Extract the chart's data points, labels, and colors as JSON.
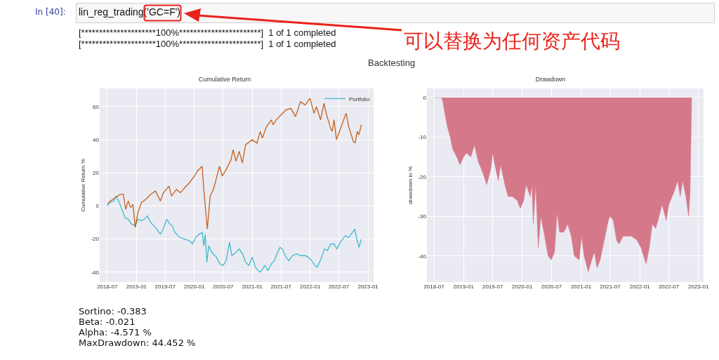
{
  "chart_data": [
    {
      "type": "other",
      "annotations": [
        "In [40]:",
        "lin_reg_trading('GC=F')",
        "[*********************100%***********************]  1 of 1 completed",
        "[*********************100%***********************]  1 of 1 completed",
        "可以替换为任何资产代码",
        "Backtesting"
      ]
    },
    {
      "type": "line",
      "title": "Cumulative Return",
      "ylabel": "Cumulative Return %",
      "xlim": [
        "2018-05-14",
        "2023-02-05"
      ],
      "ylim": [
        -46,
        71
      ],
      "xticks": [
        "2018-07",
        "2019-01",
        "2019-07",
        "2020-01",
        "2020-07",
        "2021-01",
        "2021-07",
        "2022-01",
        "2022-07",
        "2023-01"
      ],
      "yticks": [
        -40,
        -20,
        0,
        20,
        40,
        60
      ],
      "grid": true,
      "legend": "top right",
      "line_style": "solid",
      "marker": "none",
      "series": [
        {
          "name": "Portfolio",
          "color": "#40b9cc",
          "x": [
            "2018-07-01",
            "2018-07-15",
            "2018-08-10",
            "2018-08-25",
            "2018-09-15",
            "2018-10-05",
            "2018-10-20",
            "2018-11-10",
            "2018-12-01",
            "2018-12-25",
            "2019-01-10",
            "2019-02-01",
            "2019-02-20",
            "2019-03-10",
            "2019-04-01",
            "2019-05-01",
            "2019-06-01",
            "2019-06-20",
            "2019-07-10",
            "2019-08-01",
            "2019-08-15",
            "2019-09-01",
            "2019-10-01",
            "2019-11-01",
            "2019-12-01",
            "2019-12-20",
            "2020-01-10",
            "2020-02-01",
            "2020-02-20",
            "2020-03-01",
            "2020-03-10",
            "2020-03-20",
            "2020-04-01",
            "2020-04-20",
            "2020-05-20",
            "2020-06-10",
            "2020-07-01",
            "2020-07-20",
            "2020-08-10",
            "2020-08-25",
            "2020-09-20",
            "2020-10-10",
            "2020-11-01",
            "2020-11-20",
            "2020-12-10",
            "2021-01-01",
            "2021-01-20",
            "2021-02-15",
            "2021-03-01",
            "2021-03-20",
            "2021-04-10",
            "2021-05-01",
            "2021-05-20",
            "2021-06-10",
            "2021-06-25",
            "2021-07-10",
            "2021-08-01",
            "2021-08-20",
            "2021-09-10",
            "2021-10-10",
            "2021-11-01",
            "2021-12-01",
            "2021-12-20",
            "2022-01-10",
            "2022-02-01",
            "2022-02-15",
            "2022-03-10",
            "2022-04-01",
            "2022-04-20",
            "2022-05-10",
            "2022-06-01",
            "2022-06-20",
            "2022-07-10",
            "2022-08-10",
            "2022-09-01",
            "2022-09-25",
            "2022-10-10",
            "2022-10-25",
            "2022-11-05",
            "2022-11-20"
          ],
          "values": [
            0,
            2,
            3,
            6,
            2,
            -3,
            -7,
            -8,
            -11,
            -12,
            -8,
            -9,
            -8,
            -6,
            -10,
            -13,
            -17,
            -14,
            -8,
            -11,
            -12,
            -16,
            -19,
            -20,
            -21,
            -23,
            -19,
            -17,
            -16,
            -24,
            -17,
            -34,
            -24,
            -28,
            -31,
            -35,
            -36,
            -33,
            -22,
            -30,
            -28,
            -26,
            -29,
            -34,
            -36,
            -31,
            -37,
            -40,
            -39,
            -36,
            -39,
            -35,
            -33,
            -28,
            -25,
            -26,
            -31,
            -33,
            -30,
            -29,
            -30,
            -30,
            -31,
            -33,
            -36,
            -37,
            -32,
            -26,
            -27,
            -23,
            -23,
            -26,
            -22,
            -18,
            -19,
            -16,
            -14,
            -21,
            -25,
            -20
          ]
        },
        {
          "color": "#c5621c",
          "x": [
            "2018-07-01",
            "2018-07-20",
            "2018-08-20",
            "2018-09-20",
            "2018-10-10",
            "2018-10-25",
            "2018-11-10",
            "2018-11-25",
            "2018-12-10",
            "2018-12-24",
            "2019-01-10",
            "2019-02-01",
            "2019-03-01",
            "2019-04-01",
            "2019-05-01",
            "2019-06-01",
            "2019-06-20",
            "2019-07-25",
            "2019-08-10",
            "2019-09-10",
            "2019-10-05",
            "2019-11-01",
            "2019-12-01",
            "2020-01-01",
            "2020-01-20",
            "2020-02-19",
            "2020-03-01",
            "2020-03-10",
            "2020-03-23",
            "2020-04-10",
            "2020-05-01",
            "2020-06-08",
            "2020-06-25",
            "2020-07-20",
            "2020-08-20",
            "2020-09-02",
            "2020-09-20",
            "2020-10-10",
            "2020-10-30",
            "2020-11-20",
            "2020-12-31",
            "2021-01-30",
            "2021-02-20",
            "2021-03-05",
            "2021-04-01",
            "2021-05-01",
            "2021-05-12",
            "2021-06-01",
            "2021-07-01",
            "2021-08-01",
            "2021-09-01",
            "2021-10-01",
            "2021-11-01",
            "2021-11-30",
            "2021-12-31",
            "2022-01-25",
            "2022-02-10",
            "2022-03-08",
            "2022-03-29",
            "2022-04-15",
            "2022-05-10",
            "2022-05-20",
            "2022-06-01",
            "2022-06-16",
            "2022-07-01",
            "2022-08-16",
            "2022-09-01",
            "2022-09-30",
            "2022-10-12",
            "2022-10-25",
            "2022-11-05",
            "2022-11-20"
          ],
          "values": [
            1,
            3,
            5,
            7,
            7,
            -2,
            3,
            -1,
            1,
            -13,
            -4,
            2,
            4,
            7,
            9,
            3,
            8,
            12,
            6,
            10,
            8,
            11,
            14,
            18,
            21,
            24,
            10,
            0,
            -14,
            6,
            10,
            24,
            18,
            22,
            28,
            34,
            27,
            33,
            26,
            37,
            40,
            38,
            45,
            41,
            48,
            52,
            49,
            52,
            55,
            58,
            59,
            54,
            63,
            61,
            65,
            56,
            60,
            52,
            62,
            55,
            47,
            45,
            52,
            40,
            44,
            56,
            48,
            39,
            38,
            45,
            43,
            49
          ]
        }
      ]
    },
    {
      "type": "area",
      "title": "Drawdown",
      "ylabel": "drawdown in %",
      "xlim": [
        "2018-05-18",
        "2023-02-02"
      ],
      "ylim": [
        -46.6,
        2.3
      ],
      "xticks": [
        "2018-07",
        "2019-01",
        "2019-07",
        "2020-01",
        "2020-07",
        "2021-01",
        "2021-07",
        "2022-01",
        "2022-07",
        "2023-01"
      ],
      "yticks": [
        -40,
        -30,
        -20,
        -10,
        0
      ],
      "grid": true,
      "series": [
        {
          "color": "#d5788a",
          "x": [
            "2018-07-01",
            "2018-08-15",
            "2018-08-25",
            "2018-09-20",
            "2018-10-10",
            "2018-10-25",
            "2018-11-20",
            "2018-12-10",
            "2019-01-01",
            "2019-01-20",
            "2019-02-15",
            "2019-03-10",
            "2019-04-01",
            "2019-05-01",
            "2019-05-25",
            "2019-06-20",
            "2019-07-01",
            "2019-07-20",
            "2019-08-05",
            "2019-08-20",
            "2019-09-15",
            "2019-10-05",
            "2019-11-01",
            "2019-12-01",
            "2019-12-20",
            "2020-01-10",
            "2020-01-25",
            "2020-02-20",
            "2020-03-01",
            "2020-03-10",
            "2020-03-25",
            "2020-04-10",
            "2020-04-25",
            "2020-05-15",
            "2020-06-10",
            "2020-06-30",
            "2020-07-20",
            "2020-08-05",
            "2020-08-20",
            "2020-09-15",
            "2020-10-10",
            "2020-11-01",
            "2020-11-20",
            "2020-12-20",
            "2021-01-05",
            "2021-01-20",
            "2021-02-15",
            "2021-03-01",
            "2021-03-25",
            "2021-04-10",
            "2021-04-30",
            "2021-05-25",
            "2021-06-20",
            "2021-07-01",
            "2021-07-20",
            "2021-08-10",
            "2021-08-25",
            "2021-09-20",
            "2021-10-15",
            "2021-11-10",
            "2021-12-15",
            "2022-01-10",
            "2022-01-25",
            "2022-02-10",
            "2022-03-01",
            "2022-03-20",
            "2022-04-10",
            "2022-04-25",
            "2022-05-20",
            "2022-06-15",
            "2022-07-01",
            "2022-08-01",
            "2022-08-25",
            "2022-09-10",
            "2022-09-25",
            "2022-10-15",
            "2022-11-01",
            "2022-11-10",
            "2022-11-20"
          ],
          "values": [
            0,
            0,
            -1,
            -7,
            -10,
            -13,
            -15,
            -17,
            -15,
            -14,
            -15,
            -12,
            -16,
            -19,
            -22,
            -18,
            -14,
            -18,
            -21,
            -17,
            -22,
            -25,
            -25,
            -26,
            -28,
            -26,
            -22,
            -25,
            -22,
            -32,
            -22,
            -38,
            -30,
            -34,
            -40,
            -41,
            -39,
            -29,
            -34,
            -34,
            -32,
            -35,
            -40,
            -41,
            -35,
            -40,
            -44,
            -42,
            -39,
            -43,
            -41,
            -36,
            -31,
            -30,
            -31,
            -36,
            -37,
            -35,
            -35,
            -35,
            -36,
            -38,
            -40,
            -42,
            -38,
            -32,
            -33,
            -31,
            -27,
            -31,
            -27,
            -24,
            -21,
            -25,
            -21,
            -25,
            -30,
            -24,
            0
          ]
        }
      ]
    },
    {
      "type": "other",
      "annotations": [
        "Sortino: -0.383",
        "Beta: -0.021",
        "Alpha: -4.571 %",
        "MaxDrawdown: 44.452 %"
      ]
    }
  ]
}
